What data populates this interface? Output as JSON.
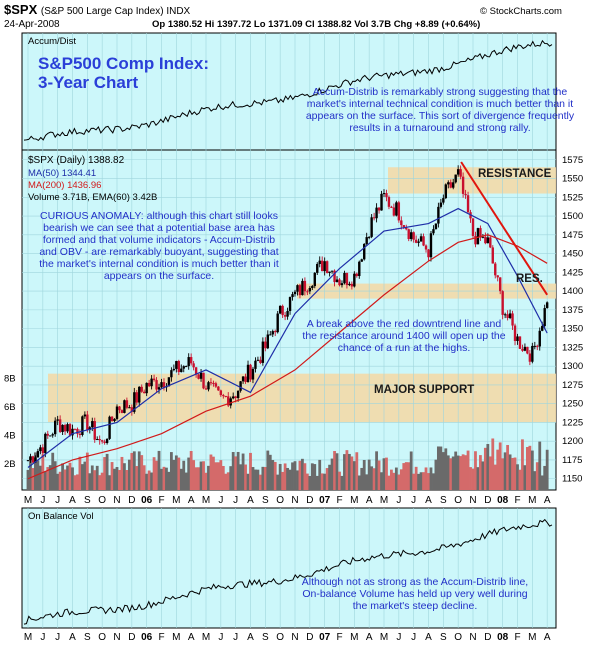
{
  "header": {
    "symbol": "$SPX",
    "full_name": "(S&P 500 Large Cap Index)  INDX",
    "date": "24-Apr-2008",
    "ohlc": "Op 1380.52   Hi 1397.72   Lo 1371.09   Cl 1388.82   Vol 3.7B   Chg +8.89 (+0.64%)",
    "source": "© StockCharts.com"
  },
  "panels": {
    "accum_label": "Accum/Dist",
    "price_label": "$SPX (Daily) 1388.82",
    "ma50_label": "MA(50) 1344.41",
    "ma200_label": "MA(200) 1436.96",
    "volume_label": "Volume 3.71B, EMA(60) 3.42B",
    "obv_label": "On Balance Vol"
  },
  "annotations": {
    "title_line1": "S&P500 Comp Index:",
    "title_line2": "3-Year Chart",
    "accum_note": "Accum-Distrib is remarkably strong suggesting that the market's internal technical condition is much better than it appears on the surface. This sort of divergence frequently results in a turnaround and strong rally.",
    "anomaly_note": "CURIOUS ANOMALY: although this chart still looks bearish we can see that a potential base area has formed and that volume indicators - Accum-Distrib and OBV - are remarkably buoyant, suggesting that the market's internal condition is much better than it appears on the surface.",
    "breakout_note": "A break above the red downtrend line and the resistance around 1400 will open up the chance of a run at the highs.",
    "obv_note": "Although not as strong as the Accum-Distrib line, On-balance Volume has held up very well during the market's steep decline.",
    "resistance": "RESISTANCE",
    "res_short": "RES.",
    "major_support": "MAJOR SUPPORT"
  },
  "colors": {
    "panel_bg": "#ccf7fa",
    "band": "#f3d9a8",
    "up_candle": "#000000",
    "down_candle": "#c8102e",
    "ma50": "#1f2ea8",
    "ma200": "#d11a1a",
    "trendline": "#e0160e",
    "annotation_text": "#2230c8"
  },
  "chart_data": {
    "type": "line",
    "title": "$SPX (S&P 500 Large Cap Index)",
    "period": "May 2005 - Apr 2008, daily",
    "x_ticks": [
      "M",
      "J",
      "J",
      "A",
      "S",
      "O",
      "N",
      "D",
      "06",
      "F",
      "M",
      "A",
      "M",
      "J",
      "J",
      "A",
      "S",
      "O",
      "N",
      "D",
      "07",
      "F",
      "M",
      "A",
      "M",
      "J",
      "J",
      "A",
      "S",
      "O",
      "N",
      "D",
      "08",
      "F",
      "M",
      "A"
    ],
    "price_axis": {
      "ticks": [
        1150,
        1175,
        1200,
        1225,
        1250,
        1275,
        1300,
        1325,
        1350,
        1375,
        1400,
        1425,
        1450,
        1475,
        1500,
        1525,
        1550,
        1575
      ],
      "ylim": [
        1135,
        1580
      ]
    },
    "volume_axis": {
      "ticks": [
        "2B",
        "4B",
        "6B",
        "8B"
      ]
    },
    "series": [
      {
        "name": "$SPX",
        "x": [
          "2005-05",
          "2005-06",
          "2005-07",
          "2005-08",
          "2005-09",
          "2005-10",
          "2005-11",
          "2005-12",
          "2006-01",
          "2006-02",
          "2006-03",
          "2006-04",
          "2006-05",
          "2006-06",
          "2006-07",
          "2006-08",
          "2006-09",
          "2006-10",
          "2006-11",
          "2006-12",
          "2007-01",
          "2007-02",
          "2007-03",
          "2007-04",
          "2007-05",
          "2007-06",
          "2007-07",
          "2007-08",
          "2007-09",
          "2007-10",
          "2007-11",
          "2007-12",
          "2008-01",
          "2008-02",
          "2008-03",
          "2008-04"
        ],
        "values": [
          1175,
          1195,
          1225,
          1215,
          1225,
          1195,
          1245,
          1250,
          1275,
          1280,
          1295,
          1305,
          1275,
          1255,
          1265,
          1295,
          1325,
          1370,
          1395,
          1415,
          1440,
          1415,
          1420,
          1485,
          1525,
          1505,
          1470,
          1455,
          1525,
          1555,
          1475,
          1465,
          1380,
          1335,
          1315,
          1385
        ]
      },
      {
        "name": "MA(50)",
        "x": [
          "2005-05",
          "2005-08",
          "2005-11",
          "2006-02",
          "2006-05",
          "2006-08",
          "2006-11",
          "2007-02",
          "2007-05",
          "2007-08",
          "2007-10",
          "2007-12",
          "2008-02",
          "2008-04"
        ],
        "values": [
          1165,
          1210,
          1225,
          1270,
          1295,
          1265,
          1370,
          1430,
          1480,
          1490,
          1510,
          1490,
          1420,
          1344
        ]
      },
      {
        "name": "MA(200)",
        "x": [
          "2005-05",
          "2005-08",
          "2005-11",
          "2006-02",
          "2006-05",
          "2006-08",
          "2006-11",
          "2007-02",
          "2007-05",
          "2007-08",
          "2007-10",
          "2007-12",
          "2008-02",
          "2008-04"
        ],
        "values": [
          1150,
          1175,
          1190,
          1210,
          1240,
          1260,
          1295,
          1345,
          1395,
          1440,
          1465,
          1475,
          1460,
          1437
        ]
      }
    ],
    "bands": [
      {
        "label": "RESISTANCE",
        "y_range": [
          1530,
          1565
        ]
      },
      {
        "label": "RES.",
        "y_range": [
          1390,
          1410
        ]
      },
      {
        "label": "MAJOR SUPPORT",
        "y_range": [
          1225,
          1290
        ]
      }
    ]
  }
}
